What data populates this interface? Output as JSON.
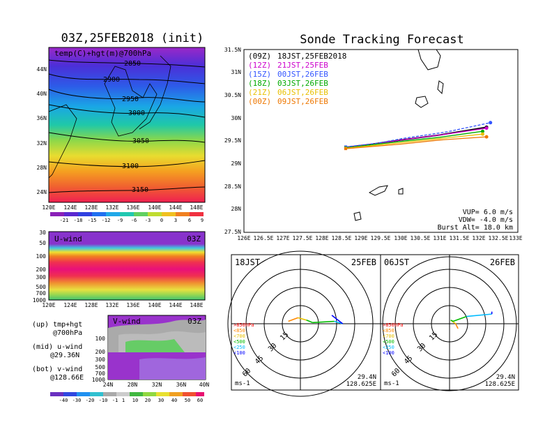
{
  "left_panel": {
    "title": "03Z,25FEB2018 (init)",
    "map_label": "temp(C)+hgt(m)@700hPa",
    "lat_ticks": [
      "44N",
      "40N",
      "36N",
      "32N",
      "28N",
      "24N"
    ],
    "lon_ticks": [
      "120E",
      "124E",
      "128E",
      "132E",
      "136E",
      "140E",
      "144E",
      "148E"
    ],
    "contour_labels": [
      "2850",
      "2900",
      "2950",
      "3000",
      "3050",
      "3100",
      "3150"
    ],
    "temp_colorbar": [
      "-21",
      "-18",
      "-15",
      "-12",
      "-9",
      "-6",
      "-3",
      "0",
      "3",
      "6",
      "9"
    ],
    "uwind_label": "U-wind",
    "uwind_time": "03Z",
    "pressure_ticks": [
      "30",
      "50",
      "100",
      "200",
      "300",
      "500",
      "700",
      "1000"
    ],
    "vwind_label": "V-wind",
    "vwind_time": "03Z",
    "vwind_pressure_ticks": [
      "100",
      "200",
      "300",
      "500",
      "700",
      "1000"
    ],
    "vwind_lat_ticks": [
      "24N",
      "28N",
      "32N",
      "36N",
      "40N"
    ],
    "legend_up": "(up) tmp+hgt",
    "legend_up2": "@700hPa",
    "legend_mid": "(mid) u-wind",
    "legend_mid2": "@29.36N",
    "legend_bot": "(bot) v-wind",
    "legend_bot2": "@128.66E",
    "wind_colorbar": [
      "-40",
      "-30",
      "-20",
      "-10",
      "-1",
      "1",
      "10",
      "20",
      "30",
      "40",
      "50",
      "60"
    ]
  },
  "track_panel": {
    "title": "Sonde Tracking Forecast",
    "legend": [
      {
        "code": "(09Z)",
        "time": "18JST,25FEB2018",
        "color": "#000000"
      },
      {
        "code": "(12Z)",
        "time": "21JST,25FEB",
        "color": "#cc00cc"
      },
      {
        "code": "(15Z)",
        "time": "00JST,26FEB",
        "color": "#3355ff"
      },
      {
        "code": "(18Z)",
        "time": "03JST,26FEB",
        "color": "#00aa00"
      },
      {
        "code": "(21Z)",
        "time": "06JST,26FEB",
        "color": "#e8c000"
      },
      {
        "code": "(00Z)",
        "time": "09JST,26FEB",
        "color": "#ee7700"
      }
    ],
    "y_ticks": [
      "31.5N",
      "31N",
      "30.5N",
      "30N",
      "29.5N",
      "29N",
      "28.5N",
      "28N",
      "27.5N"
    ],
    "x_ticks": [
      "126E",
      "126.5E",
      "127E",
      "127.5E",
      "128E",
      "128.5E",
      "129E",
      "129.5E",
      "130E",
      "130.5E",
      "131E",
      "131.5E",
      "132E",
      "132.5E",
      "133E"
    ],
    "vup": "VUP= 6.0 m/s",
    "vdw": "VDW= -4.0 m/s",
    "burst": "Burst Alt= 18.0 km"
  },
  "hodo_left": {
    "time": "18JST",
    "date": "25FEB",
    "levels": [
      ">850hPa",
      "<850",
      "<700",
      "<500",
      "<250",
      "<100"
    ],
    "level_colors": [
      "#ff0000",
      "#ff8800",
      "#e8c000",
      "#00bb00",
      "#00bbff",
      "#0000ff"
    ],
    "ring_labels": [
      "15",
      "30",
      "45",
      "60"
    ],
    "unit": "ms-1",
    "lat": "29.4N",
    "lon": "128.625E"
  },
  "hodo_right": {
    "time": "06JST",
    "date": "26FEB",
    "levels": [
      ">850hPa",
      "<850",
      "<700",
      "<500",
      "<250",
      "<100"
    ],
    "level_colors": [
      "#ff0000",
      "#ff8800",
      "#e8c000",
      "#00bb00",
      "#00bbff",
      "#0000ff"
    ],
    "ring_labels": [
      "15",
      "30",
      "45",
      "60"
    ],
    "unit": "ms-1",
    "lat": "29.4N",
    "lon": "128.625E"
  },
  "chart_data": [
    {
      "type": "line",
      "title": "Sonde Tracking Forecast",
      "xlim": [
        126,
        133
      ],
      "ylim": [
        27.5,
        31.5
      ],
      "series": [
        {
          "name": "(09Z) 18JST,25FEB2018",
          "color": "#000000",
          "lon": [
            128.6,
            129.2,
            130.0,
            131.0,
            132.2
          ],
          "lat": [
            29.36,
            29.42,
            29.52,
            29.63,
            29.8
          ]
        },
        {
          "name": "(12Z) 21JST,25FEB",
          "color": "#cc00cc",
          "lon": [
            128.6,
            129.3,
            130.1,
            131.1,
            132.2
          ],
          "lat": [
            29.36,
            29.43,
            29.53,
            29.64,
            29.78
          ]
        },
        {
          "name": "(15Z) 00JST,26FEB",
          "color": "#3355ff",
          "lon": [
            128.6,
            129.4,
            130.1,
            131.2,
            132.3
          ],
          "lat": [
            29.37,
            29.45,
            29.56,
            29.7,
            29.9
          ]
        },
        {
          "name": "(18Z) 03JST,26FEB",
          "color": "#00aa00",
          "lon": [
            128.6,
            129.3,
            130.0,
            131.0,
            132.1
          ],
          "lat": [
            29.35,
            29.42,
            29.49,
            29.58,
            29.71
          ]
        },
        {
          "name": "(21Z) 06JST,26FEB",
          "color": "#e8c000",
          "lon": [
            128.6,
            129.3,
            130.0,
            131.0,
            132.1
          ],
          "lat": [
            29.34,
            29.4,
            29.46,
            29.55,
            29.65
          ]
        },
        {
          "name": "(00Z) 09JST,26FEB",
          "color": "#ee7700",
          "lon": [
            128.6,
            129.3,
            130.0,
            131.0,
            132.2
          ],
          "lat": [
            29.33,
            29.38,
            29.43,
            29.52,
            29.59
          ]
        }
      ]
    },
    {
      "type": "line",
      "title": "hodograph 18JST 25FEB",
      "u": [
        -10,
        -2,
        5,
        10,
        28,
        35,
        26
      ],
      "v": [
        2,
        5,
        3,
        1,
        2,
        0,
        7
      ],
      "level_index": [
        0,
        1,
        2,
        3,
        3,
        4,
        5
      ]
    },
    {
      "type": "line",
      "title": "hodograph 06JST 26FEB",
      "u": [
        7,
        5,
        1,
        3,
        14,
        35,
        35
      ],
      "v": [
        -4,
        0,
        3,
        2,
        6,
        8,
        10
      ],
      "level_index": [
        0,
        1,
        2,
        3,
        3,
        4,
        5
      ]
    }
  ]
}
